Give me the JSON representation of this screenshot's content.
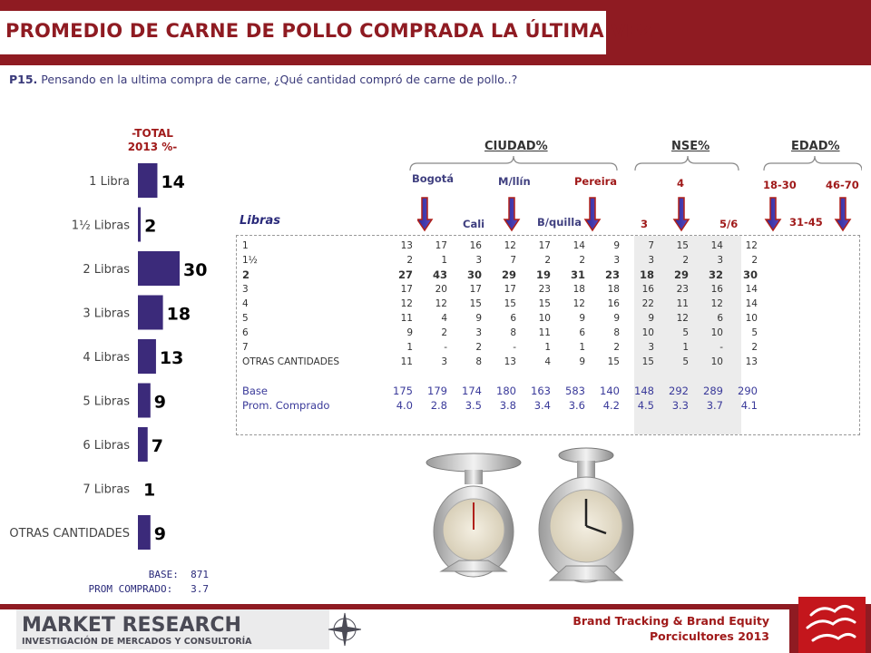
{
  "title": "PROMEDIO DE CARNE DE POLLO COMPRADA LA ÚLTIMA VEZ",
  "question": {
    "code": "P15.",
    "text": " Pensando en la ultima compra de carne, ¿Qué cantidad compró de carne de pollo..?"
  },
  "total_header": {
    "line1": "-TOTAL",
    "line2": "2013 %-"
  },
  "chart_data": {
    "type": "bar",
    "orientation": "horizontal",
    "categories": [
      "1 Libra",
      "1½ Libras",
      "2 Libras",
      "3 Libras",
      "4 Libras",
      "5 Libras",
      "6 Libras",
      "7 Libras",
      "OTRAS CANTIDADES"
    ],
    "values": [
      14,
      2,
      30,
      18,
      13,
      9,
      7,
      1,
      9
    ],
    "xlim": [
      0,
      30
    ],
    "grid": false,
    "colors": {
      "bar": "#3b2a7a",
      "label": "#000000"
    }
  },
  "base": {
    "label": "BASE:",
    "value": "871"
  },
  "prom": {
    "label": "PROM COMPRADO:",
    "value": "3.7"
  },
  "groups": {
    "ciudad": "CIUDAD%",
    "nse": "NSE%",
    "edad": "EDAD%"
  },
  "subheads": {
    "bogota": "Bogotá",
    "cali": "Cali",
    "mllin": "M/llín",
    "bquilla": "B/quilla",
    "pereira": "Pereira",
    "nse3": "3",
    "nse4": "4",
    "nse56": "5/6",
    "e1830": "18-30",
    "e3145": "31-45",
    "e4670": "46-70"
  },
  "table": {
    "unit_label": "Libras",
    "rows": [
      {
        "label": "1",
        "values": [
          "13",
          "17",
          "16",
          "12",
          "17",
          "14",
          "9",
          "7",
          "15",
          "14",
          "12"
        ]
      },
      {
        "label": "1½",
        "values": [
          "2",
          "1",
          "3",
          "7",
          "2",
          "2",
          "3",
          "3",
          "2",
          "3",
          "2"
        ]
      },
      {
        "label": "2",
        "values": [
          "27",
          "43",
          "30",
          "29",
          "19",
          "31",
          "23",
          "18",
          "29",
          "32",
          "30"
        ],
        "bold": true
      },
      {
        "label": "3",
        "values": [
          "17",
          "20",
          "17",
          "17",
          "23",
          "18",
          "18",
          "16",
          "23",
          "16",
          "14"
        ]
      },
      {
        "label": "4",
        "values": [
          "12",
          "12",
          "15",
          "15",
          "15",
          "12",
          "16",
          "22",
          "11",
          "12",
          "14"
        ]
      },
      {
        "label": "5",
        "values": [
          "11",
          "4",
          "9",
          "6",
          "10",
          "9",
          "9",
          "9",
          "12",
          "6",
          "10"
        ]
      },
      {
        "label": "6",
        "values": [
          "9",
          "2",
          "3",
          "8",
          "11",
          "6",
          "8",
          "10",
          "5",
          "10",
          "5"
        ]
      },
      {
        "label": "7",
        "values": [
          "1",
          "-",
          "2",
          "-",
          "1",
          "1",
          "2",
          "3",
          "1",
          "-",
          "2"
        ]
      },
      {
        "label": "OTRAS CANTIDADES",
        "values": [
          "11",
          "3",
          "8",
          "13",
          "4",
          "9",
          "15",
          "15",
          "5",
          "10",
          "13"
        ]
      }
    ],
    "base_row": {
      "label": "Base",
      "values": [
        "175",
        "179",
        "174",
        "180",
        "163",
        "583",
        "140",
        "148",
        "292",
        "289",
        "290"
      ]
    },
    "prom_row": {
      "label": "Prom. Comprado",
      "values": [
        "4.0",
        "2.8",
        "3.5",
        "3.8",
        "3.4",
        "3.6",
        "4.2",
        "4.5",
        "3.3",
        "3.7",
        "4.1"
      ]
    }
  },
  "footer": {
    "logo_line1": "MARKET RESEARCH",
    "logo_line2": "INVESTIGACIÓN DE MERCADOS Y CONSULTORÍA",
    "brand_line1": "Brand Tracking & Brand Equity",
    "brand_line2": "Porcicultores 2013"
  }
}
